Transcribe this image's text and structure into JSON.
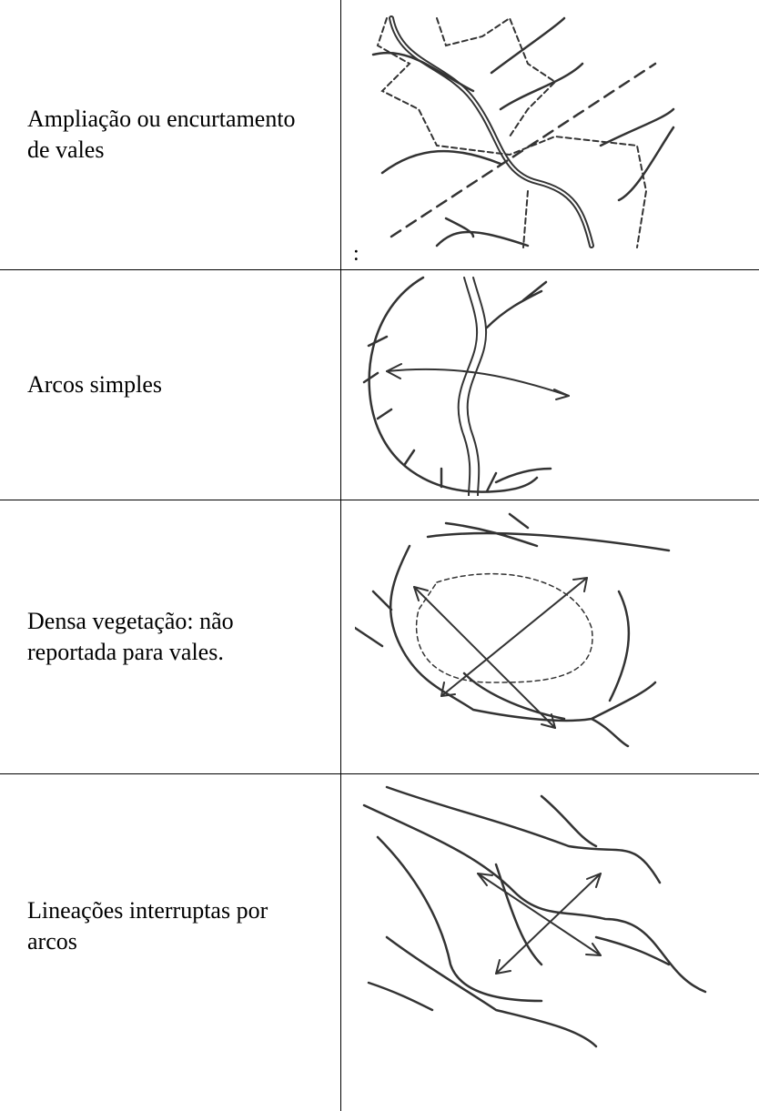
{
  "table": {
    "rows": [
      [
        "Ampliação ou encurtamento de vales",
        ":"
      ],
      [
        "Arcos simples"
      ],
      [
        "Densa vegetação: não reportada para vales."
      ],
      [
        "Lineações interruptas por arcos"
      ]
    ]
  }
}
